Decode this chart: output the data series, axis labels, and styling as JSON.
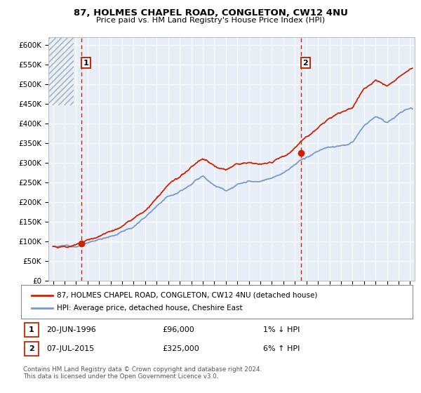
{
  "title_line1": "87, HOLMES CHAPEL ROAD, CONGLETON, CW12 4NU",
  "title_line2": "Price paid vs. HM Land Registry's House Price Index (HPI)",
  "yticks": [
    0,
    50000,
    100000,
    150000,
    200000,
    250000,
    300000,
    350000,
    400000,
    450000,
    500000,
    550000,
    600000
  ],
  "ytick_labels": [
    "£0",
    "£50K",
    "£100K",
    "£150K",
    "£200K",
    "£250K",
    "£300K",
    "£350K",
    "£400K",
    "£450K",
    "£500K",
    "£550K",
    "£600K"
  ],
  "xlim_start": 1993.6,
  "xlim_end": 2025.4,
  "ylim_min": 0,
  "ylim_max": 620000,
  "hpi_color": "#7799cc",
  "price_color": "#cc2200",
  "sale1_x": 1996.47,
  "sale1_y": 96000,
  "sale2_x": 2015.52,
  "sale2_y": 325000,
  "legend_label1": "87, HOLMES CHAPEL ROAD, CONGLETON, CW12 4NU (detached house)",
  "legend_label2": "HPI: Average price, detached house, Cheshire East",
  "annotation1_date": "20-JUN-1996",
  "annotation1_price": "£96,000",
  "annotation1_hpi": "1% ↓ HPI",
  "annotation2_date": "07-JUL-2015",
  "annotation2_price": "£325,000",
  "annotation2_hpi": "6% ↑ HPI",
  "footer": "Contains HM Land Registry data © Crown copyright and database right 2024.\nThis data is licensed under the Open Government Licence v3.0.",
  "background_color": "#ffffff",
  "plot_bg_color": "#e8eef8",
  "hpi_years": [
    1994,
    1995,
    1996,
    1997,
    1998,
    1999,
    2000,
    2001,
    2002,
    2003,
    2004,
    2005,
    2006,
    2007,
    2008,
    2009,
    2010,
    2011,
    2012,
    2013,
    2014,
    2015,
    2016,
    2017,
    2018,
    2019,
    2020,
    2021,
    2022,
    2023,
    2024,
    2025
  ],
  "hpi_values": [
    88000,
    90000,
    93000,
    102000,
    110000,
    122000,
    135000,
    148000,
    173000,
    205000,
    235000,
    248000,
    270000,
    292000,
    272000,
    258000,
    272000,
    278000,
    273000,
    280000,
    298000,
    318000,
    335000,
    352000,
    363000,
    368000,
    373000,
    415000,
    435000,
    422000,
    445000,
    460000
  ],
  "price_years": [
    1994,
    1995,
    1996,
    1997,
    1998,
    1999,
    2000,
    2001,
    2002,
    2003,
    2004,
    2005,
    2006,
    2007,
    2008,
    2009,
    2010,
    2011,
    2012,
    2013,
    2014,
    2015,
    2016,
    2017,
    2018,
    2019,
    2020,
    2021,
    2022,
    2023,
    2024,
    2025
  ],
  "price_values": [
    88000,
    90000,
    93000,
    102000,
    110000,
    122000,
    135000,
    148000,
    173000,
    205000,
    235000,
    248000,
    270000,
    292000,
    272000,
    258000,
    272000,
    278000,
    273000,
    280000,
    298000,
    318000,
    348000,
    375000,
    395000,
    408000,
    418000,
    465000,
    490000,
    475000,
    505000,
    525000
  ]
}
